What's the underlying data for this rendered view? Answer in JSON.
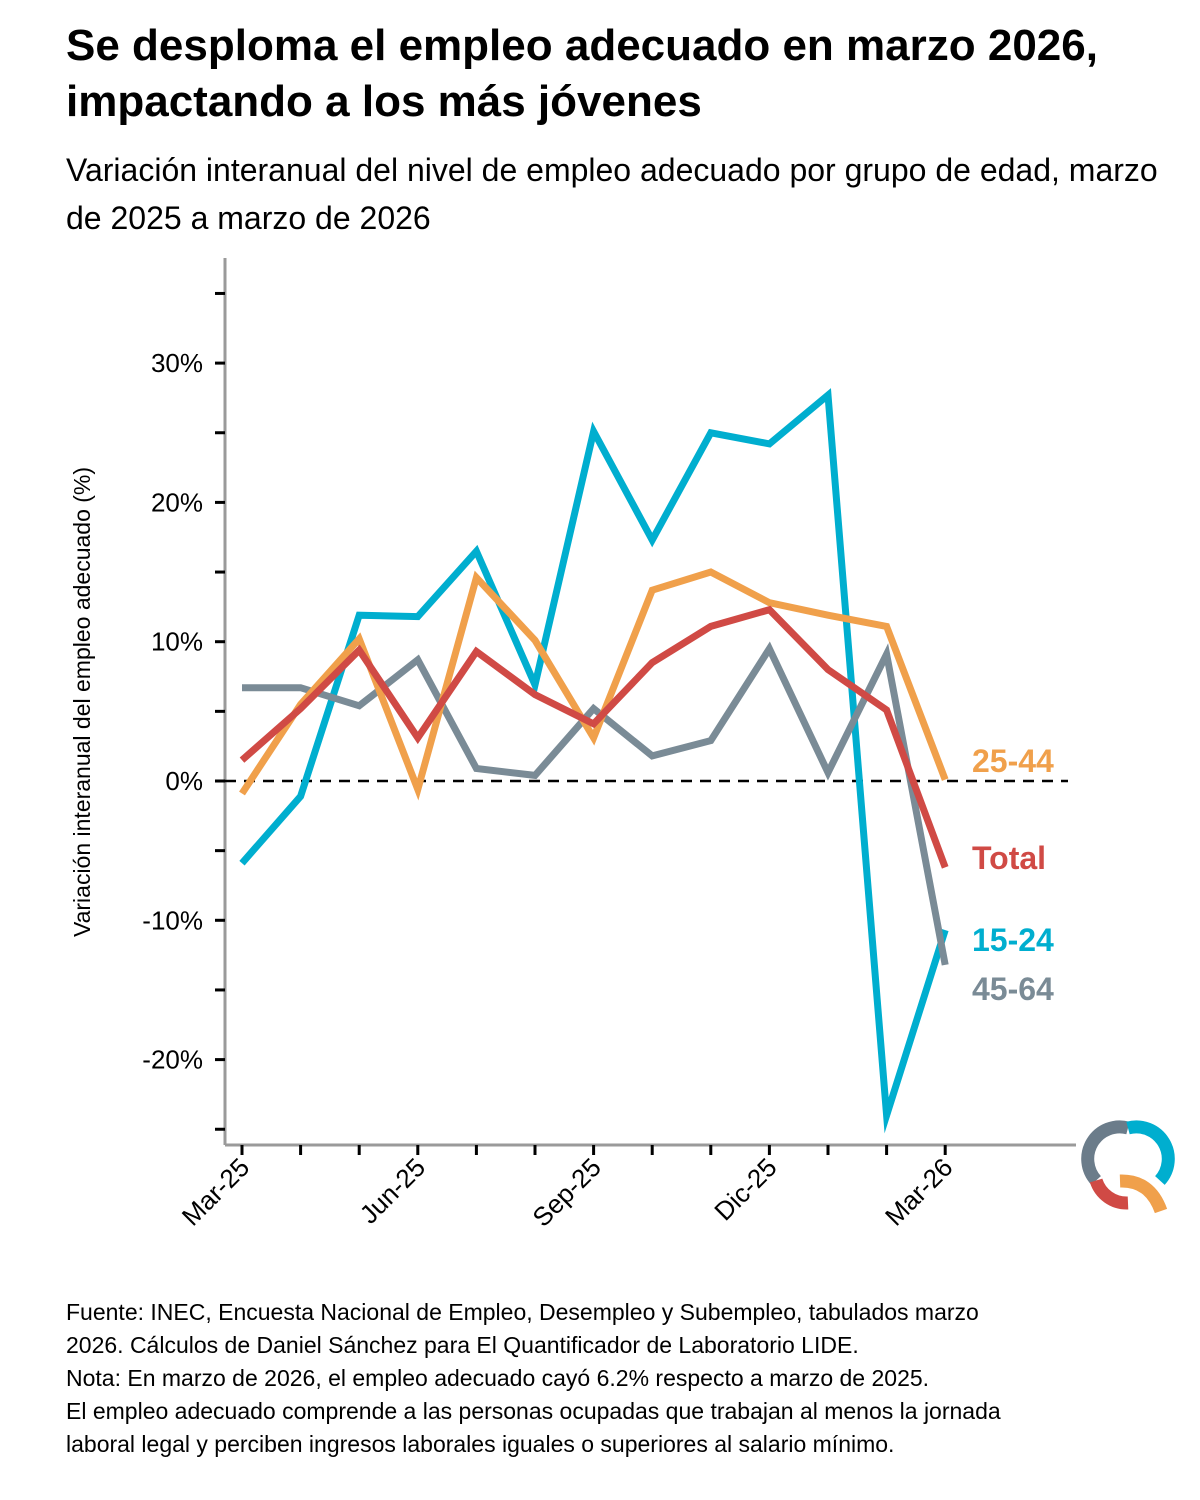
{
  "title": "Se desploma el empleo adecuado en marzo 2026, impactando a los más jóvenes",
  "subtitle": "Variación interanual del nivel de empleo adecuado por grupo de edad, marzo de 2025 a marzo de 2026",
  "footnote": {
    "line1": "Fuente: INEC, Encuesta Nacional de Empleo, Desempleo y Subempleo, tabulados marzo",
    "line2": "2026. Cálculos de Daniel Sánchez para El Quantificador de Laboratorio LIDE.",
    "line3": "Nota: En marzo de 2026, el empleo adecuado cayó 6.2% respecto a marzo de 2025.",
    "line4": "El empleo adecuado comprende a las personas ocupadas que trabajan al menos la jornada",
    "line5": "laboral legal y perciben ingresos laborales iguales o superiores al salario mínimo."
  },
  "logo": {
    "name": "El Quantificador logo",
    "colors": [
      "#00AECF",
      "#F0A04B",
      "#D04A45",
      "#6B7C8A"
    ]
  },
  "chart_data": {
    "type": "line",
    "title": "Se desploma el empleo adecuado en marzo 2026, impactando a los más jóvenes",
    "ylabel": "Variación interanual del empleo adecuado (%)",
    "xlabel": "",
    "x": [
      "Mar-25",
      "Abr-25",
      "May-25",
      "Jun-25",
      "Jul-25",
      "Ago-25",
      "Sep-25",
      "Oct-25",
      "Nov-25",
      "Dic-25",
      "Ene-26",
      "Feb-26",
      "Mar-26"
    ],
    "xtick_labels": [
      "Mar-25",
      "Jun-25",
      "Sep-25",
      "Dic-25",
      "Mar-26"
    ],
    "xtick_label_indices": [
      0,
      3,
      6,
      9,
      12
    ],
    "ylim": [
      -25,
      37
    ],
    "yticks": [
      -20,
      -10,
      0,
      10,
      20,
      30
    ],
    "ytick_labels": [
      "-20%",
      "-10%",
      "0%",
      "10%",
      "20%",
      "30%"
    ],
    "reference_line": {
      "y": 0,
      "style": "dashed"
    },
    "grid": false,
    "legend": "direct labels at line ends (right)",
    "series": [
      {
        "name": "25-44",
        "color": "#F0A04B",
        "values": [
          -0.9,
          5.5,
          10.2,
          -0.6,
          14.6,
          10.1,
          3.1,
          13.7,
          15.0,
          12.8,
          11.9,
          11.1,
          0.1
        ]
      },
      {
        "name": "Total",
        "color": "#D04A45",
        "values": [
          1.5,
          5.2,
          9.4,
          3.1,
          9.3,
          6.2,
          4.1,
          8.5,
          11.1,
          12.3,
          8.0,
          5.1,
          -6.2
        ]
      },
      {
        "name": "15-24",
        "color": "#00AECF",
        "values": [
          -5.9,
          -1.1,
          11.9,
          11.8,
          16.5,
          6.9,
          25.1,
          17.3,
          25.0,
          24.2,
          27.7,
          -24.0,
          -10.7
        ]
      },
      {
        "name": "45-64",
        "color": "#7A8B96",
        "values": [
          6.7,
          6.7,
          5.4,
          8.7,
          0.9,
          0.4,
          5.2,
          1.8,
          2.9,
          9.5,
          0.6,
          9.1,
          -13.2
        ]
      }
    ],
    "end_labels": [
      "25-44",
      "Total",
      "15-24",
      "45-64"
    ]
  }
}
